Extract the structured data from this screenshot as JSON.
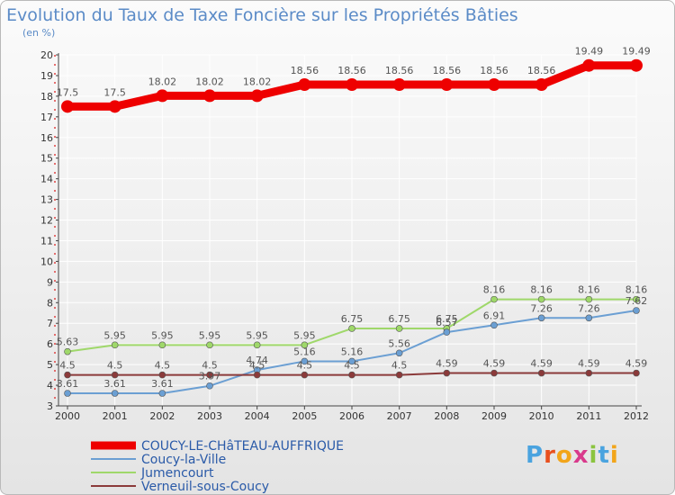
{
  "title": "Evolution du Taux de Taxe Foncière sur les Propriétés Bâties",
  "unit_label": "(en %)",
  "brand": {
    "letters": [
      "P",
      "r",
      "o",
      "x",
      "i",
      "t",
      "i"
    ],
    "colors": [
      "#4aa3df",
      "#e8501e",
      "#f2a51a",
      "#d93a8c",
      "#8bc43f",
      "#4aa3df",
      "#f2a51a"
    ]
  },
  "chart_data": {
    "type": "line",
    "title": "Evolution du Taux de Taxe Foncière sur les Propriétés Bâties",
    "ylabel": "(en %)",
    "xlabel": "",
    "ylim": [
      3,
      20
    ],
    "y_ticks": [
      3,
      4,
      5,
      6,
      7,
      8,
      9,
      10,
      11,
      12,
      13,
      14,
      15,
      16,
      17,
      18,
      19,
      20
    ],
    "x": [
      "2000",
      "2001",
      "2002",
      "2003",
      "2004",
      "2005",
      "2006",
      "2007",
      "2008",
      "2009",
      "2010",
      "2011",
      "2012"
    ],
    "legend_position": "bottom-left",
    "series": [
      {
        "name": "COUCY-LE-CHâTEAU-AUFFRIQUE",
        "color": "#ee0000",
        "weight": "thick",
        "values": [
          17.5,
          17.5,
          18.02,
          18.02,
          18.02,
          18.56,
          18.56,
          18.56,
          18.56,
          18.56,
          18.56,
          19.49,
          19.49
        ],
        "labels": [
          "17.5",
          "17.5",
          "18.02",
          "18.02",
          "18.02",
          "18.56",
          "18.56",
          "18.56",
          "18.56",
          "18.56",
          "18.56",
          "19.49",
          "19.49"
        ]
      },
      {
        "name": "Coucy-la-Ville",
        "color": "#6b9fd3",
        "weight": "thin",
        "values": [
          3.61,
          3.61,
          3.61,
          3.97,
          4.74,
          5.16,
          5.16,
          5.56,
          6.57,
          6.91,
          7.26,
          7.26,
          7.62
        ],
        "labels": [
          "3.61",
          "3.61",
          "3.61",
          "3.97",
          "4.74",
          "5.16",
          "5.16",
          "5.56",
          "6.57",
          "6.91",
          "7.26",
          "7.26",
          "7.62"
        ]
      },
      {
        "name": "Jumencourt",
        "color": "#9fd86a",
        "weight": "thin",
        "values": [
          5.63,
          5.95,
          5.95,
          5.95,
          5.95,
          5.95,
          6.75,
          6.75,
          6.75,
          8.16,
          8.16,
          8.16,
          8.16
        ],
        "labels": [
          "5.63",
          "5.95",
          "5.95",
          "5.95",
          "5.95",
          "5.95",
          "6.75",
          "6.75",
          "6.75",
          "8.16",
          "8.16",
          "8.16",
          "8.16"
        ]
      },
      {
        "name": "Verneuil-sous-Coucy",
        "color": "#8b3a3a",
        "weight": "thin",
        "values": [
          4.5,
          4.5,
          4.5,
          4.5,
          4.5,
          4.5,
          4.5,
          4.5,
          4.59,
          4.59,
          4.59,
          4.59,
          4.59
        ],
        "labels": [
          "4.5",
          "4.5",
          "4.5",
          "4.5",
          "4.5",
          "4.5",
          "4.5",
          "4.5",
          "4.59",
          "4.59",
          "4.59",
          "4.59",
          "4.59"
        ]
      }
    ]
  }
}
